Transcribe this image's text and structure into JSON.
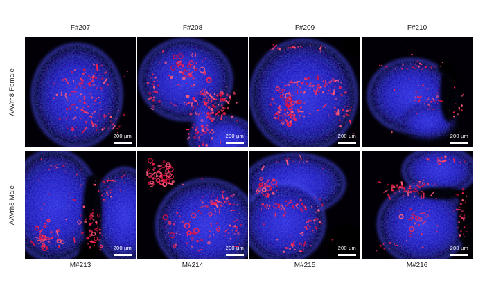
{
  "figure": {
    "scale_bar_label": "200 µm",
    "rows": [
      {
        "label": "AAVrh8 Female",
        "panels": [
          {
            "label": "F#207"
          },
          {
            "label": "F#208"
          },
          {
            "label": "F#209"
          },
          {
            "label": "F#210"
          }
        ]
      },
      {
        "label": "AAVrh8 Male",
        "panels": [
          {
            "label": "M#213"
          },
          {
            "label": "M#214"
          },
          {
            "label": "M#215"
          },
          {
            "label": "M#216"
          }
        ]
      }
    ],
    "colors": {
      "nuclei_blue": "#2222cc",
      "signal_red": "#ff2d5e",
      "panel_background": "#020006",
      "page_background": "#ffffff",
      "label_text": "#1a1a1a",
      "scale_bar": "#ffffff"
    }
  }
}
